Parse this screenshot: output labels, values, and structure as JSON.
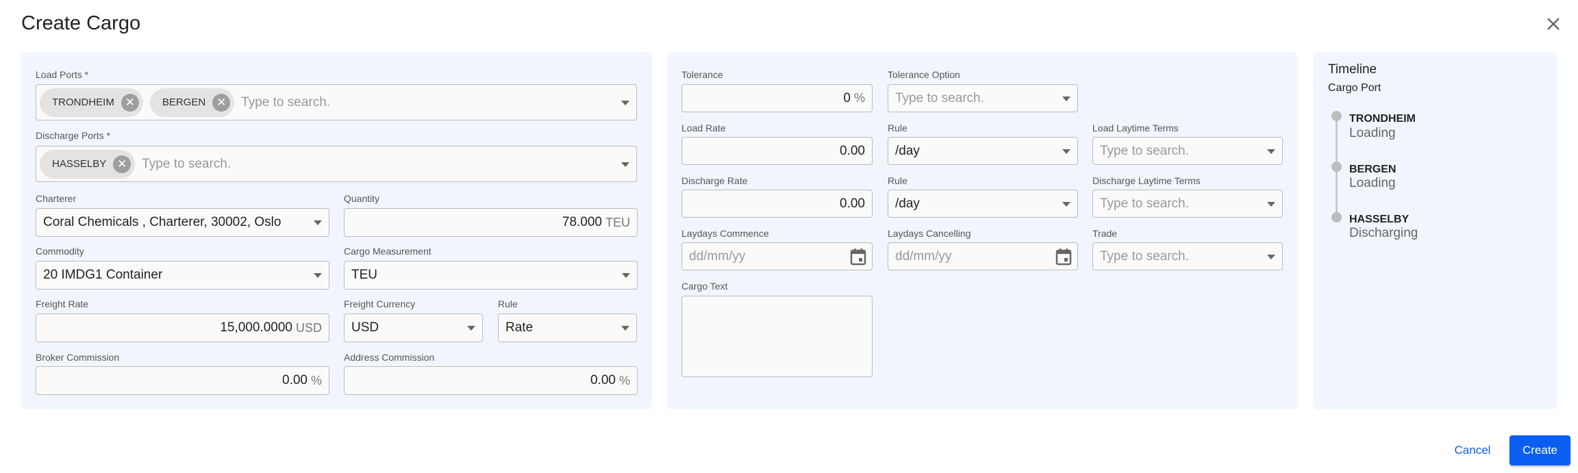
{
  "dialog": {
    "title": "Create Cargo",
    "close_icon": "close-icon"
  },
  "cargo": {
    "load_ports": {
      "label": "Load Ports *",
      "chips": [
        "TRONDHEIM",
        "BERGEN"
      ],
      "placeholder": "Type to search."
    },
    "discharge_ports": {
      "label": "Discharge Ports *",
      "chips": [
        "HASSELBY"
      ],
      "placeholder": "Type to search."
    },
    "charterer": {
      "label": "Charterer",
      "value": "Coral Chemicals , Charterer, 30002, Oslo"
    },
    "quantity": {
      "label": "Quantity",
      "value": "78.000",
      "unit": "TEU"
    },
    "commodity": {
      "label": "Commodity",
      "value": "20 IMDG1 Container"
    },
    "cargo_measurement": {
      "label": "Cargo Measurement",
      "value": "TEU"
    },
    "freight_rate": {
      "label": "Freight Rate",
      "value": "15,000.0000",
      "unit": "USD"
    },
    "freight_currency": {
      "label": "Freight Currency",
      "value": "USD"
    },
    "freight_rule": {
      "label": "Rule",
      "value": "Rate"
    },
    "broker_commission": {
      "label": "Broker Commission",
      "value": "0.00",
      "unit": "%"
    },
    "address_commission": {
      "label": "Address Commission",
      "value": "0.00",
      "unit": "%"
    }
  },
  "terms": {
    "tolerance": {
      "label": "Tolerance",
      "value": "0",
      "unit": "%"
    },
    "tolerance_option": {
      "label": "Tolerance Option",
      "placeholder": "Type to search."
    },
    "load_rate": {
      "label": "Load Rate",
      "value": "0.00"
    },
    "load_rule": {
      "label": "Rule",
      "value": "/day"
    },
    "load_laytime": {
      "label": "Load Laytime Terms",
      "placeholder": "Type to search."
    },
    "discharge_rate": {
      "label": "Discharge Rate",
      "value": "0.00"
    },
    "discharge_rule": {
      "label": "Rule",
      "value": "/day"
    },
    "discharge_laytime": {
      "label": "Discharge Laytime Terms",
      "placeholder": "Type to search."
    },
    "laydays_commence": {
      "label": "Laydays Commence",
      "placeholder": "dd/mm/yy"
    },
    "laydays_cancelling": {
      "label": "Laydays Cancelling",
      "placeholder": "dd/mm/yy"
    },
    "trade": {
      "label": "Trade",
      "placeholder": "Type to search."
    },
    "cargo_text": {
      "label": "Cargo Text",
      "value": ""
    }
  },
  "timeline": {
    "title": "Timeline",
    "subtitle": "Cargo Port",
    "items": [
      {
        "port": "TRONDHEIM",
        "type": "Loading"
      },
      {
        "port": "BERGEN",
        "type": "Loading"
      },
      {
        "port": "HASSELBY",
        "type": "Discharging"
      }
    ]
  },
  "actions": {
    "cancel": "Cancel",
    "create": "Create"
  },
  "colors": {
    "primary": "#0a5ff0",
    "panel": "#f1f6fe"
  }
}
